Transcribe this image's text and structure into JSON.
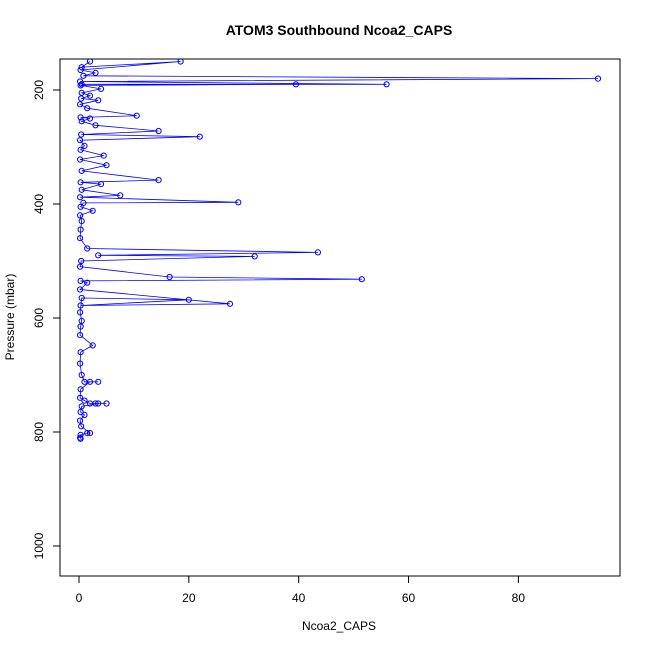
{
  "chart_data": {
    "type": "scatter",
    "title": "ATOM3 Southbound Ncoa2_CAPS",
    "xlabel": "Ncoa2_CAPS",
    "ylabel": "Pressure (mbar)",
    "xlim": [
      0,
      96
    ],
    "ylim": [
      1050,
      150
    ],
    "y_reversed": true,
    "grid": false,
    "x_ticks": [
      0,
      20,
      40,
      60,
      80
    ],
    "y_ticks": [
      200,
      400,
      600,
      800,
      1000
    ],
    "series": [
      {
        "color": "#0000ff",
        "marker": "open-circle",
        "connected": true,
        "points": [
          [
            2.0,
            150
          ],
          [
            0.5,
            160
          ],
          [
            18.5,
            150
          ],
          [
            0.3,
            165
          ],
          [
            3.0,
            170
          ],
          [
            0.8,
            175
          ],
          [
            94.5,
            180
          ],
          [
            0.2,
            185
          ],
          [
            56.0,
            190
          ],
          [
            0.5,
            190
          ],
          [
            39.5,
            190
          ],
          [
            0.3,
            192
          ],
          [
            4.0,
            198
          ],
          [
            0.5,
            205
          ],
          [
            2.0,
            210
          ],
          [
            0.4,
            215
          ],
          [
            3.5,
            218
          ],
          [
            0.2,
            225
          ],
          [
            1.5,
            232
          ],
          [
            10.5,
            245
          ],
          [
            0.3,
            248
          ],
          [
            2.0,
            250
          ],
          [
            0.5,
            255
          ],
          [
            3.0,
            262
          ],
          [
            14.5,
            272
          ],
          [
            0.4,
            278
          ],
          [
            22.0,
            282
          ],
          [
            0.2,
            288
          ],
          [
            1.0,
            298
          ],
          [
            0.3,
            305
          ],
          [
            4.5,
            315
          ],
          [
            0.2,
            322
          ],
          [
            5.0,
            332
          ],
          [
            0.5,
            342
          ],
          [
            14.5,
            358
          ],
          [
            0.3,
            362
          ],
          [
            4.0,
            365
          ],
          [
            0.5,
            375
          ],
          [
            7.5,
            385
          ],
          [
            0.2,
            388
          ],
          [
            29.0,
            397
          ],
          [
            0.8,
            398
          ],
          [
            0.3,
            405
          ],
          [
            2.5,
            412
          ],
          [
            0.2,
            420
          ],
          [
            0.5,
            430
          ],
          [
            0.3,
            445
          ],
          [
            0.2,
            460
          ],
          [
            1.5,
            478
          ],
          [
            43.5,
            485
          ],
          [
            3.5,
            490
          ],
          [
            32.0,
            492
          ],
          [
            0.4,
            500
          ],
          [
            0.2,
            510
          ],
          [
            16.5,
            528
          ],
          [
            51.5,
            532
          ],
          [
            0.3,
            535
          ],
          [
            1.5,
            538
          ],
          [
            0.2,
            550
          ],
          [
            27.5,
            575
          ],
          [
            0.3,
            578
          ],
          [
            20.0,
            568
          ],
          [
            0.5,
            565
          ],
          [
            0.2,
            590
          ],
          [
            0.5,
            605
          ],
          [
            0.3,
            615
          ],
          [
            0.2,
            630
          ],
          [
            2.5,
            648
          ],
          [
            0.3,
            660
          ],
          [
            0.2,
            680
          ],
          [
            0.5,
            700
          ],
          [
            1.0,
            712
          ],
          [
            3.5,
            712
          ],
          [
            2.0,
            712
          ],
          [
            0.3,
            725
          ],
          [
            0.2,
            740
          ],
          [
            1.0,
            745
          ],
          [
            2.0,
            750
          ],
          [
            3.0,
            750
          ],
          [
            5.0,
            750
          ],
          [
            3.5,
            750
          ],
          [
            0.5,
            755
          ],
          [
            0.3,
            765
          ],
          [
            1.0,
            770
          ],
          [
            0.2,
            780
          ],
          [
            0.4,
            790
          ],
          [
            2.0,
            802
          ],
          [
            1.5,
            802
          ],
          [
            0.3,
            805
          ],
          [
            0.2,
            810
          ],
          [
            0.3,
            812
          ]
        ]
      }
    ]
  }
}
